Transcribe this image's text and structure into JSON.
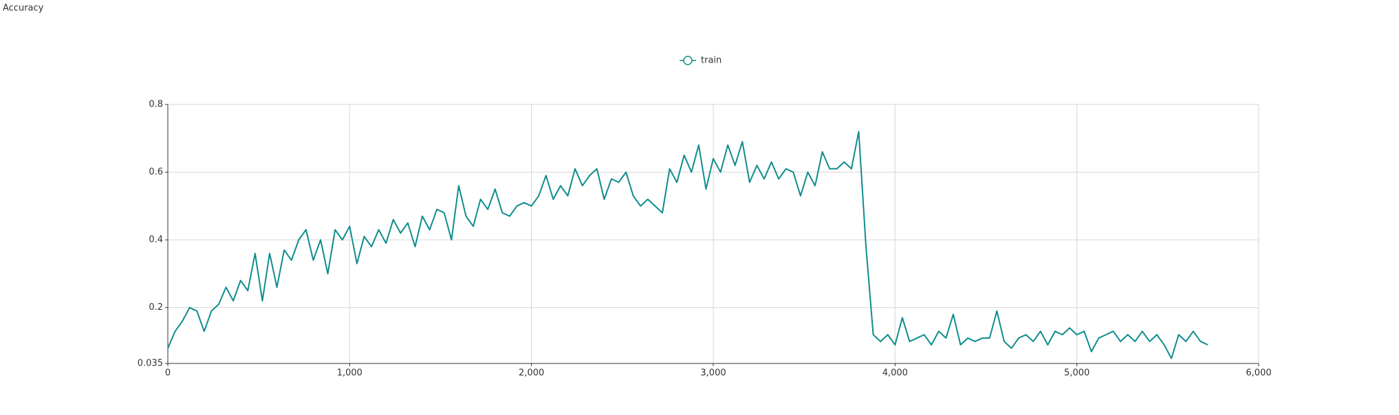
{
  "chart_data": {
    "type": "line",
    "title": "Accuracy",
    "x": [
      0,
      40,
      80,
      120,
      160,
      200,
      240,
      280,
      320,
      360,
      400,
      440,
      480,
      520,
      560,
      600,
      640,
      680,
      720,
      760,
      800,
      840,
      880,
      920,
      960,
      1000,
      1040,
      1080,
      1120,
      1160,
      1200,
      1240,
      1280,
      1320,
      1360,
      1400,
      1440,
      1480,
      1520,
      1560,
      1600,
      1640,
      1680,
      1720,
      1760,
      1800,
      1840,
      1880,
      1920,
      1960,
      2000,
      2040,
      2080,
      2120,
      2160,
      2200,
      2240,
      2280,
      2320,
      2360,
      2400,
      2440,
      2480,
      2520,
      2560,
      2600,
      2640,
      2680,
      2720,
      2760,
      2800,
      2840,
      2880,
      2920,
      2960,
      3000,
      3040,
      3080,
      3120,
      3160,
      3200,
      3240,
      3280,
      3320,
      3360,
      3400,
      3440,
      3480,
      3520,
      3560,
      3600,
      3640,
      3680,
      3720,
      3760,
      3800,
      3840,
      3880,
      3920,
      3960,
      4000,
      4040,
      4080,
      4120,
      4160,
      4200,
      4240,
      4280,
      4320,
      4360,
      4400,
      4440,
      4480,
      4520,
      4560,
      4600,
      4640,
      4680,
      4720,
      4760,
      4800,
      4840,
      4880,
      4920,
      4960,
      5000,
      5040,
      5080,
      5120,
      5160,
      5200,
      5240,
      5280,
      5320,
      5360,
      5400,
      5440,
      5480,
      5520,
      5560,
      5600,
      5640,
      5680,
      5720
    ],
    "series": [
      {
        "name": "train",
        "color": "#0e8c8c",
        "values": [
          0.08,
          0.13,
          0.16,
          0.2,
          0.19,
          0.13,
          0.19,
          0.21,
          0.26,
          0.22,
          0.28,
          0.25,
          0.36,
          0.22,
          0.36,
          0.26,
          0.37,
          0.34,
          0.4,
          0.43,
          0.34,
          0.4,
          0.3,
          0.43,
          0.4,
          0.44,
          0.33,
          0.41,
          0.38,
          0.43,
          0.39,
          0.46,
          0.42,
          0.45,
          0.38,
          0.47,
          0.43,
          0.49,
          0.48,
          0.4,
          0.56,
          0.47,
          0.44,
          0.52,
          0.49,
          0.55,
          0.48,
          0.47,
          0.5,
          0.51,
          0.5,
          0.53,
          0.59,
          0.52,
          0.56,
          0.53,
          0.61,
          0.56,
          0.59,
          0.61,
          0.52,
          0.58,
          0.57,
          0.6,
          0.53,
          0.5,
          0.52,
          0.5,
          0.48,
          0.61,
          0.57,
          0.65,
          0.6,
          0.68,
          0.55,
          0.64,
          0.6,
          0.68,
          0.62,
          0.69,
          0.57,
          0.62,
          0.58,
          0.63,
          0.58,
          0.61,
          0.6,
          0.53,
          0.6,
          0.56,
          0.66,
          0.61,
          0.61,
          0.63,
          0.61,
          0.72,
          0.38,
          0.12,
          0.1,
          0.12,
          0.09,
          0.17,
          0.1,
          0.11,
          0.12,
          0.09,
          0.13,
          0.11,
          0.18,
          0.09,
          0.11,
          0.1,
          0.11,
          0.11,
          0.19,
          0.1,
          0.08,
          0.11,
          0.12,
          0.1,
          0.13,
          0.09,
          0.13,
          0.12,
          0.14,
          0.12,
          0.13,
          0.07,
          0.11,
          0.12,
          0.13,
          0.1,
          0.12,
          0.1,
          0.13,
          0.1,
          0.12,
          0.09,
          0.05,
          0.12,
          0.1,
          0.13,
          0.1,
          0.09
        ]
      }
    ],
    "xlim": [
      0,
      6000
    ],
    "xticks": [
      0,
      {
        "value": 1000,
        "label": "1,000"
      },
      {
        "value": 2000,
        "label": "2,000"
      },
      {
        "value": 3000,
        "label": "3,000"
      },
      {
        "value": 4000,
        "label": "4,000"
      },
      {
        "value": 5000,
        "label": "5,000"
      },
      {
        "value": 6000,
        "label": "6,000"
      }
    ],
    "ylim": [
      0.035,
      0.8
    ],
    "yticks": [
      0.035,
      0.2,
      0.4,
      0.6,
      0.8
    ],
    "grid": true
  }
}
